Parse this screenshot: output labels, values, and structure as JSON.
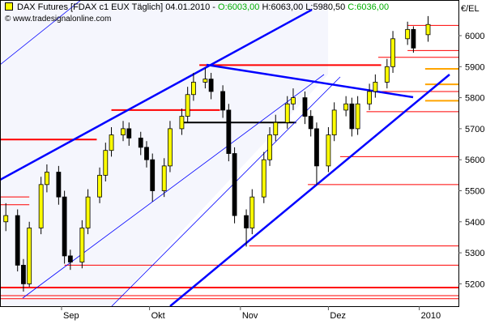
{
  "header": {
    "symbol": "DAX Futures [FDAX c1 EUX Täglich] 04.01.2010 - ",
    "open": "O:6003,00",
    "high": "H:6063,00",
    "low": "L:5980,50",
    "close": "C:6036,00",
    "copyright": "© www.tradesignalonline.com",
    "unit": "€/EL"
  },
  "chart_data": {
    "type": "candlestick",
    "title": "DAX Futures [FDAX c1 EUX Täglich]",
    "ylabel": "€/EL",
    "ylim": [
      5130,
      6090
    ],
    "yticks": [
      5200,
      5300,
      5400,
      5500,
      5600,
      5700,
      5800,
      5900,
      6000
    ],
    "ytick_labels": [
      "5200",
      "5300",
      "5400",
      "5500",
      "5600",
      "5700",
      "5800",
      "5900",
      "6000"
    ],
    "xticks": [
      {
        "date": "2009-09-01",
        "label": "Sep"
      },
      {
        "date": "2009-10-01",
        "label": "Okt"
      },
      {
        "date": "2009-11-01",
        "label": "Nov"
      },
      {
        "date": "2009-12-01",
        "label": "Dez"
      },
      {
        "date": "2010-01-01",
        "label": "2010"
      }
    ],
    "colors": {
      "up": "#ffff00",
      "down": "#000000",
      "support": "#ff0000",
      "target": "#ffa500",
      "trend": "#0000ff",
      "shade": "#f5f6fd"
    },
    "candles": [
      [
        "2009-08-13",
        5400,
        5460,
        5370,
        5420
      ],
      [
        "2009-08-17",
        5420,
        5440,
        5240,
        5260
      ],
      [
        "2009-08-19",
        5260,
        5280,
        5175,
        5200
      ],
      [
        "2009-08-21",
        5200,
        5400,
        5190,
        5380
      ],
      [
        "2009-08-25",
        5380,
        5545,
        5360,
        5520
      ],
      [
        "2009-08-27",
        5520,
        5585,
        5495,
        5560
      ],
      [
        "2009-08-31",
        5560,
        5580,
        5455,
        5480
      ],
      [
        "2009-09-02",
        5480,
        5500,
        5265,
        5290
      ],
      [
        "2009-09-04",
        5290,
        5310,
        5245,
        5270
      ],
      [
        "2009-09-08",
        5270,
        5405,
        5250,
        5380
      ],
      [
        "2009-09-10",
        5380,
        5505,
        5360,
        5480
      ],
      [
        "2009-09-14",
        5480,
        5575,
        5460,
        5550
      ],
      [
        "2009-09-16",
        5550,
        5655,
        5530,
        5630
      ],
      [
        "2009-09-18",
        5630,
        5705,
        5610,
        5680
      ],
      [
        "2009-09-22",
        5680,
        5725,
        5660,
        5700
      ],
      [
        "2009-09-24",
        5700,
        5720,
        5645,
        5670
      ],
      [
        "2009-09-28",
        5670,
        5690,
        5615,
        5640
      ],
      [
        "2009-09-30",
        5640,
        5660,
        5575,
        5600
      ],
      [
        "2009-10-02",
        5600,
        5620,
        5465,
        5500
      ],
      [
        "2009-10-06",
        5500,
        5605,
        5480,
        5580
      ],
      [
        "2009-10-08",
        5580,
        5725,
        5560,
        5700
      ],
      [
        "2009-10-12",
        5700,
        5765,
        5680,
        5740
      ],
      [
        "2009-10-14",
        5740,
        5835,
        5720,
        5810
      ],
      [
        "2009-10-16",
        5810,
        5880,
        5790,
        5850
      ],
      [
        "2009-10-20",
        5850,
        5895,
        5830,
        5860
      ],
      [
        "2009-10-22",
        5860,
        5880,
        5795,
        5820
      ],
      [
        "2009-10-26",
        5820,
        5840,
        5735,
        5760
      ],
      [
        "2009-10-28",
        5760,
        5780,
        5595,
        5620
      ],
      [
        "2009-10-30",
        5620,
        5640,
        5395,
        5420
      ],
      [
        "2009-11-03",
        5420,
        5440,
        5320,
        5380
      ],
      [
        "2009-11-05",
        5380,
        5505,
        5360,
        5480
      ],
      [
        "2009-11-09",
        5480,
        5625,
        5460,
        5600
      ],
      [
        "2009-11-11",
        5600,
        5705,
        5580,
        5680
      ],
      [
        "2009-11-13",
        5680,
        5745,
        5660,
        5720
      ],
      [
        "2009-11-17",
        5720,
        5805,
        5700,
        5780
      ],
      [
        "2009-11-19",
        5780,
        5830,
        5760,
        5800
      ],
      [
        "2009-11-23",
        5800,
        5820,
        5715,
        5740
      ],
      [
        "2009-11-25",
        5740,
        5760,
        5675,
        5700
      ],
      [
        "2009-11-27",
        5700,
        5720,
        5520,
        5580
      ],
      [
        "2009-12-01",
        5580,
        5705,
        5560,
        5680
      ],
      [
        "2009-12-03",
        5680,
        5785,
        5660,
        5760
      ],
      [
        "2009-12-07",
        5760,
        5805,
        5740,
        5780
      ],
      [
        "2009-12-09",
        5780,
        5800,
        5675,
        5700
      ],
      [
        "2009-12-11",
        5700,
        5805,
        5680,
        5780
      ],
      [
        "2009-12-15",
        5780,
        5845,
        5760,
        5820
      ],
      [
        "2009-12-17",
        5820,
        5875,
        5800,
        5850
      ],
      [
        "2009-12-21",
        5850,
        5925,
        5830,
        5900
      ],
      [
        "2009-12-23",
        5900,
        6015,
        5880,
        5990
      ],
      [
        "2009-12-28",
        5990,
        6045,
        5970,
        6020
      ],
      [
        "2009-12-30",
        6020,
        6030,
        5945,
        5960
      ],
      [
        "2010-01-04",
        6003,
        6063,
        5980.5,
        6036
      ]
    ],
    "levels": [
      {
        "price": 6033,
        "from": "2009-12-28",
        "color": "support"
      },
      {
        "price": 5952,
        "from": "2009-12-28",
        "color": "support"
      },
      {
        "price": 5930,
        "from": "2009-12-18",
        "color": "support"
      },
      {
        "price": 5905,
        "from": "2009-10-18",
        "to": "2009-12-19",
        "color": "support",
        "bold": true
      },
      {
        "price": 5820,
        "from": "2009-12-19",
        "color": "support"
      },
      {
        "price": 5755,
        "from": "2009-12-14",
        "color": "support"
      },
      {
        "price": 5760,
        "from": "2009-09-18",
        "to": "2009-10-25",
        "color": "support",
        "bold": true
      },
      {
        "price": 5665,
        "from": "2009-08-10",
        "to": "2009-09-13",
        "color": "support",
        "bold": true
      },
      {
        "price": 5610,
        "from": "2009-12-05",
        "color": "support"
      },
      {
        "price": 5520,
        "from": "2009-11-24",
        "color": "support"
      },
      {
        "price": 5480,
        "from": "2009-08-10",
        "to": "2009-08-21",
        "color": "support"
      },
      {
        "price": 5455,
        "from": "2009-08-10",
        "to": "2009-08-21",
        "color": "support"
      },
      {
        "price": 5322,
        "from": "2009-11-04",
        "color": "support"
      },
      {
        "price": 5260,
        "from": "2009-09-02",
        "color": "support"
      },
      {
        "price": 5188,
        "from": "2009-08-10",
        "color": "support",
        "bold": true
      },
      {
        "price": 5162,
        "from": "2009-08-10",
        "color": "support"
      },
      {
        "price": 5152,
        "from": "2009-08-10",
        "color": "support"
      },
      {
        "price": 5720,
        "from": "2009-10-12",
        "to": "2009-11-20",
        "color": "down",
        "bold": true
      },
      {
        "price": 5893,
        "from": "2010-01-03",
        "color": "target",
        "bold": true
      },
      {
        "price": 5843,
        "from": "2010-01-03",
        "color": "target",
        "bold": true
      },
      {
        "price": 5790,
        "from": "2010-01-03",
        "color": "target",
        "bold": true
      }
    ]
  }
}
